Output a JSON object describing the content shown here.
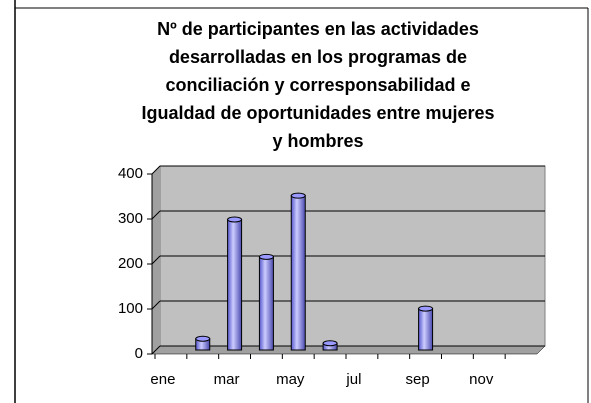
{
  "chart_data": {
    "type": "bar",
    "title_lines": [
      "Nº de participantes en las actividades",
      "desarrolladas en los programas de",
      "conciliación y corresponsabilidad e",
      "Igualdad de oportunidades entre mujeres",
      "y hombres"
    ],
    "categories": [
      "ene",
      null,
      "mar",
      null,
      "may",
      null,
      "jul",
      null,
      "sep",
      null,
      "nov",
      null
    ],
    "values": [
      0,
      25,
      290,
      207,
      343,
      15,
      0,
      0,
      92,
      0,
      0,
      0
    ],
    "color": "#9999ff",
    "ylim": [
      0,
      400
    ],
    "yticks": [
      0,
      100,
      200,
      300,
      400
    ],
    "grid": true
  }
}
